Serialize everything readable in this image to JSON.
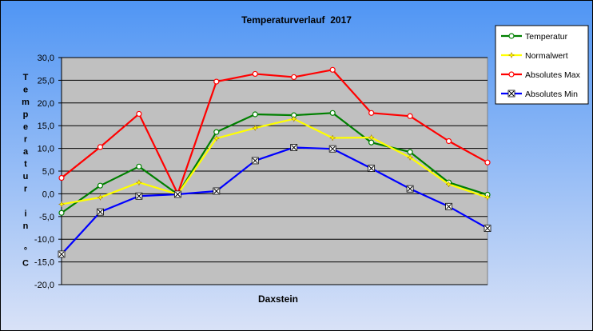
{
  "chart_data": {
    "type": "line",
    "title": "Temperaturverlauf  2017",
    "xlabel": "Daxstein",
    "ylabel_chars": [
      "T",
      "e",
      "m",
      "p",
      "e",
      "r",
      "a",
      "t",
      "u",
      "r",
      "",
      "i",
      "n",
      "",
      "°",
      "C"
    ],
    "y_ticks": [
      "30,0",
      "25,0",
      "20,0",
      "15,0",
      "10,0",
      "5,0",
      "0,0",
      "-5,0",
      "-10,0",
      "-15,0",
      "-20,0"
    ],
    "ylim": [
      -20,
      30
    ],
    "grid": true,
    "legend_position": "top-right",
    "n_points": 12,
    "series": [
      {
        "name": "Temperatur",
        "color": "#008000",
        "marker": "circle",
        "values": [
          -4.2,
          1.8,
          6.0,
          -0.1,
          13.6,
          17.5,
          17.3,
          17.8,
          11.3,
          9.2,
          2.5,
          -0.2
        ]
      },
      {
        "name": "Normalwert",
        "color": "#FFFF00",
        "marker": "star",
        "values": [
          -2.3,
          -0.8,
          2.5,
          -0.1,
          12.2,
          14.5,
          16.5,
          12.3,
          12.4,
          8.0,
          2.1,
          -0.8
        ]
      },
      {
        "name": "Absolutes Max",
        "color": "#FF0000",
        "marker": "circle",
        "values": [
          3.5,
          10.3,
          17.6,
          0.0,
          24.7,
          26.4,
          25.7,
          27.3,
          17.8,
          17.1,
          11.6,
          6.9
        ]
      },
      {
        "name": "Absolutes Min",
        "color": "#0000FF",
        "marker": "x",
        "values": [
          -13.3,
          -4.0,
          -0.5,
          -0.1,
          0.6,
          7.3,
          10.2,
          9.9,
          5.6,
          1.1,
          -2.8,
          -7.6
        ]
      }
    ]
  }
}
